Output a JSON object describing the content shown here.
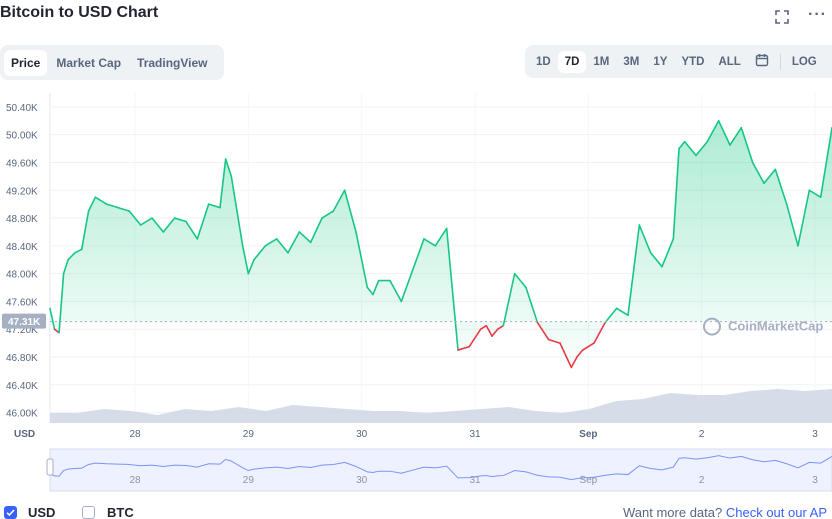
{
  "page": {
    "title": "Bitcoin to USD Chart",
    "more_label": "···"
  },
  "view_tabs": [
    {
      "label": "Price",
      "active": true
    },
    {
      "label": "Market Cap",
      "active": false
    },
    {
      "label": "TradingView",
      "active": false
    }
  ],
  "range_tabs": [
    {
      "label": "1D",
      "active": false
    },
    {
      "label": "7D",
      "active": true
    },
    {
      "label": "1M",
      "active": false
    },
    {
      "label": "3M",
      "active": false
    },
    {
      "label": "1Y",
      "active": false
    },
    {
      "label": "YTD",
      "active": false
    },
    {
      "label": "ALL",
      "active": false
    }
  ],
  "log_label": "LOG",
  "watermark": "CoinMarketCap",
  "footer": {
    "usd_label": "USD",
    "btc_label": "BTC",
    "usd_checked": true,
    "btc_checked": false,
    "api_prefix": "Want more data?",
    "api_link": "Check out our AP"
  },
  "colors": {
    "up": "#16c784",
    "down": "#ea3943",
    "accent": "#3861fb",
    "volume": "#cfd6e4"
  },
  "chart_data": {
    "type": "line",
    "ylabel": "USD",
    "ylim": [
      45850,
      50600
    ],
    "y_ticks": [
      "50.40K",
      "50.00K",
      "49.60K",
      "49.20K",
      "48.80K",
      "48.40K",
      "48.00K",
      "47.60K",
      "47.20K",
      "46.80K",
      "46.40K",
      "46.00K"
    ],
    "y_tick_values": [
      50400,
      50000,
      49600,
      49200,
      48800,
      48400,
      48000,
      47600,
      47200,
      46800,
      46400,
      46000
    ],
    "reference_price": 47310,
    "reference_label": "47.31K",
    "x_ticks": [
      "28",
      "29",
      "30",
      "31",
      "Sep",
      "2",
      "3"
    ],
    "x_tick_values": [
      0.75,
      1.75,
      2.75,
      3.75,
      4.75,
      5.75,
      6.75
    ],
    "x_range": [
      0,
      6.9
    ],
    "grid": true,
    "legend": "none",
    "series": [
      {
        "x": [
          0,
          0.04,
          0.08,
          0.12,
          0.16,
          0.22,
          0.28,
          0.34,
          0.4,
          0.5,
          0.6,
          0.7,
          0.8,
          0.9,
          1.0,
          1.1,
          1.2,
          1.3,
          1.4,
          1.5,
          1.55,
          1.6,
          1.65,
          1.7,
          1.75,
          1.8,
          1.85,
          1.9,
          2.0,
          2.1,
          2.2,
          2.3,
          2.4,
          2.5,
          2.6,
          2.7,
          2.75,
          2.8,
          2.85,
          2.9,
          3.0,
          3.1,
          3.2,
          3.3,
          3.4,
          3.5,
          3.6,
          3.7,
          3.8,
          3.85,
          3.9,
          3.95,
          4.0,
          4.1,
          4.2,
          4.3,
          4.4,
          4.5,
          4.6,
          4.65,
          4.7,
          4.8,
          4.9,
          5.0,
          5.1,
          5.2,
          5.3,
          5.4,
          5.5,
          5.55,
          5.6,
          5.7,
          5.8,
          5.9,
          6.0,
          6.1,
          6.2,
          6.3,
          6.4,
          6.5,
          6.6,
          6.7,
          6.8,
          6.9
        ],
        "y": [
          47500,
          47200,
          47150,
          48000,
          48200,
          48300,
          48350,
          48900,
          49100,
          49000,
          48950,
          48900,
          48700,
          48800,
          48600,
          48800,
          48750,
          48500,
          49000,
          48950,
          49650,
          49400,
          48900,
          48400,
          48000,
          48200,
          48300,
          48400,
          48500,
          48300,
          48600,
          48450,
          48800,
          48900,
          49200,
          48600,
          48200,
          47800,
          47700,
          47900,
          47900,
          47600,
          48050,
          48500,
          48400,
          48650,
          46900,
          46950,
          47200,
          47250,
          47100,
          47200,
          47250,
          48000,
          47800,
          47300,
          47050,
          47000,
          46650,
          46800,
          46900,
          47000,
          47300,
          47500,
          47400,
          48700,
          48300,
          48100,
          48500,
          49800,
          49900,
          49700,
          49900,
          50200,
          49850,
          50100,
          49600,
          49300,
          49500,
          49000,
          48400,
          49200,
          49100,
          50100
        ]
      }
    ],
    "volume": [
      0.25,
      0.25,
      0.35,
      0.3,
      0.2,
      0.35,
      0.3,
      0.4,
      0.3,
      0.45,
      0.4,
      0.35,
      0.3,
      0.3,
      0.25,
      0.3,
      0.35,
      0.4,
      0.3,
      0.25,
      0.35,
      0.55,
      0.6,
      0.75,
      0.7,
      0.7,
      0.8,
      0.85,
      0.8,
      0.85
    ]
  }
}
